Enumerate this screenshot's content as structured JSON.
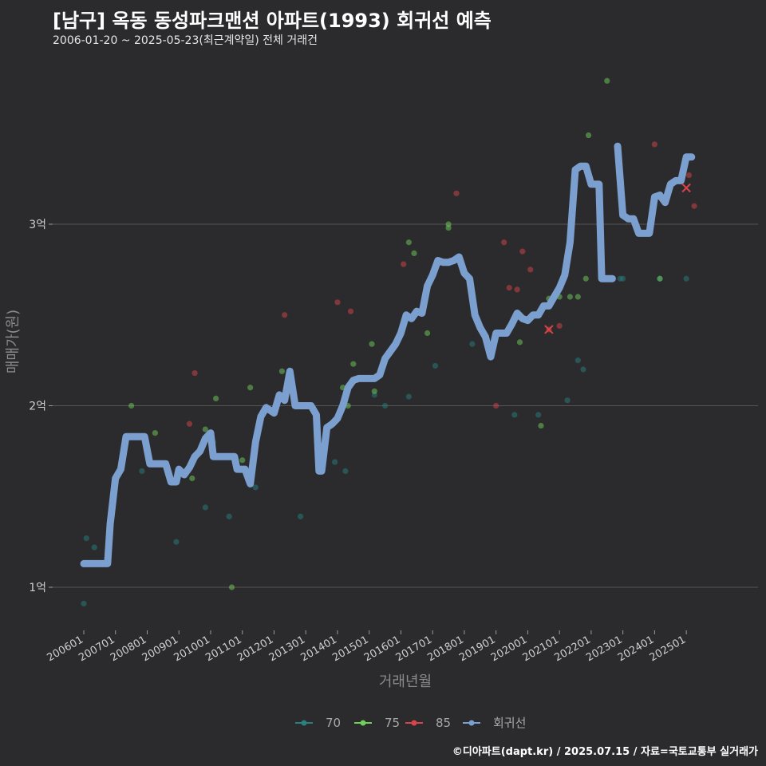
{
  "header": {
    "title": "[남구] 옥동 동성파크맨션 아파트(1993) 회귀선 예측",
    "subtitle": "2006-01-20 ~ 2025-05-23(최근계약일) 전체 거래건"
  },
  "caption": "©디아파트(dapt.kr) / 2025.07.15 / 자료=국토교통부 실거래가",
  "colors": {
    "background": "#2b2b2d",
    "grid": "#555555",
    "s70": "#2a7f7f",
    "s75": "#6fcf5a",
    "s85": "#d9434a",
    "regression": "#7b9fcf"
  },
  "chart_data": {
    "type": "scatter",
    "xlabel": "거래년월",
    "ylabel": "매매가(원)",
    "xlim": [
      "2006-01",
      "2025-07"
    ],
    "ylim": [
      0.8,
      3.98
    ],
    "y_unit": "억",
    "y_ticks": [
      {
        "value": 1,
        "label": "1억"
      },
      {
        "value": 2,
        "label": "2억"
      },
      {
        "value": 3,
        "label": "3억"
      }
    ],
    "x_ticks": [
      "200601",
      "200701",
      "200801",
      "200901",
      "201001",
      "201101",
      "201201",
      "201301",
      "201401",
      "201501",
      "201601",
      "201701",
      "201801",
      "201901",
      "202001",
      "202101",
      "202201",
      "202301",
      "202401",
      "202501"
    ],
    "legend": {
      "position": "bottom",
      "items": [
        {
          "label": "70",
          "color": "#2a7f7f"
        },
        {
          "label": "75",
          "color": "#6fcf5a"
        },
        {
          "label": "85",
          "color": "#d9434a"
        },
        {
          "label": "회귀선",
          "color": "#7b9fcf"
        }
      ]
    },
    "series": [
      {
        "name": "70",
        "points": [
          [
            "2006-01",
            0.91
          ],
          [
            "2006-02",
            1.27
          ],
          [
            "2006-05",
            1.22
          ],
          [
            "2007-11",
            1.64
          ],
          [
            "2008-12",
            1.25
          ],
          [
            "2009-11",
            1.44
          ],
          [
            "2010-02",
            1.8
          ],
          [
            "2010-08",
            1.39
          ],
          [
            "2011-06",
            1.55
          ],
          [
            "2012-11",
            1.39
          ],
          [
            "2013-12",
            1.69
          ],
          [
            "2014-04",
            1.64
          ],
          [
            "2015-03",
            2.06
          ],
          [
            "2015-07",
            2.0
          ],
          [
            "2016-04",
            2.05
          ],
          [
            "2017-02",
            2.22
          ],
          [
            "2018-04",
            2.34
          ],
          [
            "2019-08",
            1.95
          ],
          [
            "2020-05",
            1.95
          ],
          [
            "2021-04",
            2.03
          ],
          [
            "2021-08",
            2.25
          ],
          [
            "2021-10",
            2.2
          ],
          [
            "2022-12",
            2.7
          ],
          [
            "2023-01",
            2.7
          ],
          [
            "2024-03",
            2.7
          ],
          [
            "2025-01",
            2.7
          ]
        ]
      },
      {
        "name": "75",
        "points": [
          [
            "2007-07",
            2.0
          ],
          [
            "2008-04",
            1.85
          ],
          [
            "2009-06",
            1.6
          ],
          [
            "2009-11",
            1.87
          ],
          [
            "2010-03",
            2.04
          ],
          [
            "2010-09",
            1.0
          ],
          [
            "2011-01",
            1.7
          ],
          [
            "2011-04",
            2.1
          ],
          [
            "2012-04",
            2.19
          ],
          [
            "2014-03",
            2.1
          ],
          [
            "2014-05",
            2.0
          ],
          [
            "2014-07",
            2.23
          ],
          [
            "2015-02",
            2.34
          ],
          [
            "2015-03",
            2.08
          ],
          [
            "2016-04",
            2.9
          ],
          [
            "2016-06",
            2.84
          ],
          [
            "2016-11",
            2.4
          ],
          [
            "2017-07",
            3.0
          ],
          [
            "2017-07",
            2.98
          ],
          [
            "2018-09",
            2.38
          ],
          [
            "2019-10",
            2.35
          ],
          [
            "2020-06",
            1.89
          ],
          [
            "2020-09",
            2.59
          ],
          [
            "2021-01",
            2.6
          ],
          [
            "2021-05",
            2.6
          ],
          [
            "2021-08",
            2.6
          ],
          [
            "2021-11",
            2.7
          ],
          [
            "2021-12",
            3.49
          ],
          [
            "2022-07",
            3.79
          ],
          [
            "2024-03",
            2.7
          ]
        ]
      },
      {
        "name": "85",
        "points": [
          [
            "2009-05",
            1.9
          ],
          [
            "2009-07",
            2.18
          ],
          [
            "2012-05",
            2.5
          ],
          [
            "2014-01",
            2.57
          ],
          [
            "2014-06",
            2.52
          ],
          [
            "2016-02",
            2.78
          ],
          [
            "2017-10",
            3.17
          ],
          [
            "2019-01",
            2.0
          ],
          [
            "2019-04",
            2.9
          ],
          [
            "2019-06",
            2.65
          ],
          [
            "2019-09",
            2.64
          ],
          [
            "2019-11",
            2.85
          ],
          [
            "2020-02",
            2.75
          ],
          [
            "2020-09",
            2.42
          ],
          [
            "2021-01",
            2.44
          ],
          [
            "2024-01",
            3.44
          ],
          [
            "2025-02",
            3.27
          ],
          [
            "2025-04",
            3.1
          ]
        ]
      }
    ],
    "regression_line": [
      [
        "2006-01",
        1.13
      ],
      [
        "2006-02",
        1.13
      ],
      [
        "2006-04",
        1.13
      ],
      [
        "2006-06",
        1.13
      ],
      [
        "2006-08",
        1.13
      ],
      [
        "2006-10",
        1.13
      ],
      [
        "2006-11",
        1.35
      ],
      [
        "2007-01",
        1.6
      ],
      [
        "2007-03",
        1.65
      ],
      [
        "2007-05",
        1.83
      ],
      [
        "2007-07",
        1.83
      ],
      [
        "2007-09",
        1.83
      ],
      [
        "2007-12",
        1.83
      ],
      [
        "2008-02",
        1.68
      ],
      [
        "2008-06",
        1.68
      ],
      [
        "2008-08",
        1.68
      ],
      [
        "2008-10",
        1.58
      ],
      [
        "2008-12",
        1.58
      ],
      [
        "2009-01",
        1.65
      ],
      [
        "2009-03",
        1.62
      ],
      [
        "2009-05",
        1.66
      ],
      [
        "2009-07",
        1.72
      ],
      [
        "2009-09",
        1.75
      ],
      [
        "2009-11",
        1.82
      ],
      [
        "2010-01",
        1.85
      ],
      [
        "2010-02",
        1.72
      ],
      [
        "2010-04",
        1.72
      ],
      [
        "2010-06",
        1.72
      ],
      [
        "2010-08",
        1.72
      ],
      [
        "2010-10",
        1.72
      ],
      [
        "2010-11",
        1.65
      ],
      [
        "2011-02",
        1.65
      ],
      [
        "2011-04",
        1.57
      ],
      [
        "2011-06",
        1.8
      ],
      [
        "2011-08",
        1.94
      ],
      [
        "2011-10",
        1.99
      ],
      [
        "2012-01",
        1.96
      ],
      [
        "2012-03",
        2.06
      ],
      [
        "2012-05",
        2.03
      ],
      [
        "2012-07",
        2.19
      ],
      [
        "2012-09",
        2.0
      ],
      [
        "2012-11",
        2.0
      ],
      [
        "2013-01",
        2.0
      ],
      [
        "2013-03",
        2.0
      ],
      [
        "2013-05",
        1.95
      ],
      [
        "2013-06",
        1.64
      ],
      [
        "2013-07",
        1.64
      ],
      [
        "2013-09",
        1.88
      ],
      [
        "2013-11",
        1.9
      ],
      [
        "2014-01",
        1.93
      ],
      [
        "2014-03",
        2.0
      ],
      [
        "2014-05",
        2.1
      ],
      [
        "2014-07",
        2.14
      ],
      [
        "2014-09",
        2.15
      ],
      [
        "2014-11",
        2.15
      ],
      [
        "2015-01",
        2.15
      ],
      [
        "2015-03",
        2.15
      ],
      [
        "2015-05",
        2.17
      ],
      [
        "2015-07",
        2.26
      ],
      [
        "2015-09",
        2.3
      ],
      [
        "2015-11",
        2.34
      ],
      [
        "2016-01",
        2.4
      ],
      [
        "2016-03",
        2.5
      ],
      [
        "2016-05",
        2.48
      ],
      [
        "2016-07",
        2.52
      ],
      [
        "2016-09",
        2.51
      ],
      [
        "2016-11",
        2.66
      ],
      [
        "2017-01",
        2.72
      ],
      [
        "2017-03",
        2.8
      ],
      [
        "2017-05",
        2.79
      ],
      [
        "2017-07",
        2.79
      ],
      [
        "2017-09",
        2.8
      ],
      [
        "2017-11",
        2.82
      ],
      [
        "2018-01",
        2.73
      ],
      [
        "2018-03",
        2.7
      ],
      [
        "2018-05",
        2.5
      ],
      [
        "2018-07",
        2.43
      ],
      [
        "2018-09",
        2.38
      ],
      [
        "2018-11",
        2.27
      ],
      [
        "2019-01",
        2.4
      ],
      [
        "2019-03",
        2.4
      ],
      [
        "2019-05",
        2.4
      ],
      [
        "2019-07",
        2.45
      ],
      [
        "2019-09",
        2.51
      ],
      [
        "2019-11",
        2.48
      ],
      [
        "2020-01",
        2.47
      ],
      [
        "2020-03",
        2.5
      ],
      [
        "2020-05",
        2.5
      ],
      [
        "2020-07",
        2.55
      ],
      [
        "2020-09",
        2.55
      ],
      [
        "2020-11",
        2.6
      ],
      [
        "2021-01",
        2.65
      ],
      [
        "2021-03",
        2.72
      ],
      [
        "2021-05",
        2.9
      ],
      [
        "2021-07",
        3.3
      ],
      [
        "2021-09",
        3.32
      ],
      [
        "2021-11",
        3.32
      ],
      [
        "2022-01",
        3.22
      ],
      [
        "2022-03",
        3.22
      ],
      [
        "2022-04",
        3.22
      ],
      [
        "2022-05",
        2.7
      ],
      [
        "2022-07",
        2.7
      ],
      [
        "2022-09",
        2.7
      ],
      [
        "2022-11",
        3.43
      ],
      [
        "2023-01",
        3.05
      ],
      [
        "2023-03",
        3.03
      ],
      [
        "2023-05",
        3.03
      ],
      [
        "2023-07",
        2.95
      ],
      [
        "2023-09",
        2.95
      ],
      [
        "2023-11",
        2.95
      ],
      [
        "2024-01",
        3.15
      ],
      [
        "2024-03",
        3.16
      ],
      [
        "2024-05",
        3.12
      ],
      [
        "2024-07",
        3.22
      ],
      [
        "2024-09",
        3.24
      ],
      [
        "2024-11",
        3.24
      ],
      [
        "2025-01",
        3.37
      ],
      [
        "2025-03",
        3.37
      ]
    ],
    "regression_breaks_before": [
      "2022-11"
    ],
    "marker": {
      "x": "2025-01",
      "y": 3.2,
      "symbol": "x",
      "color": "#d9434a"
    },
    "marker_2": {
      "x": "2020-09",
      "y": 2.42,
      "symbol": "x",
      "color": "#d9434a"
    }
  }
}
